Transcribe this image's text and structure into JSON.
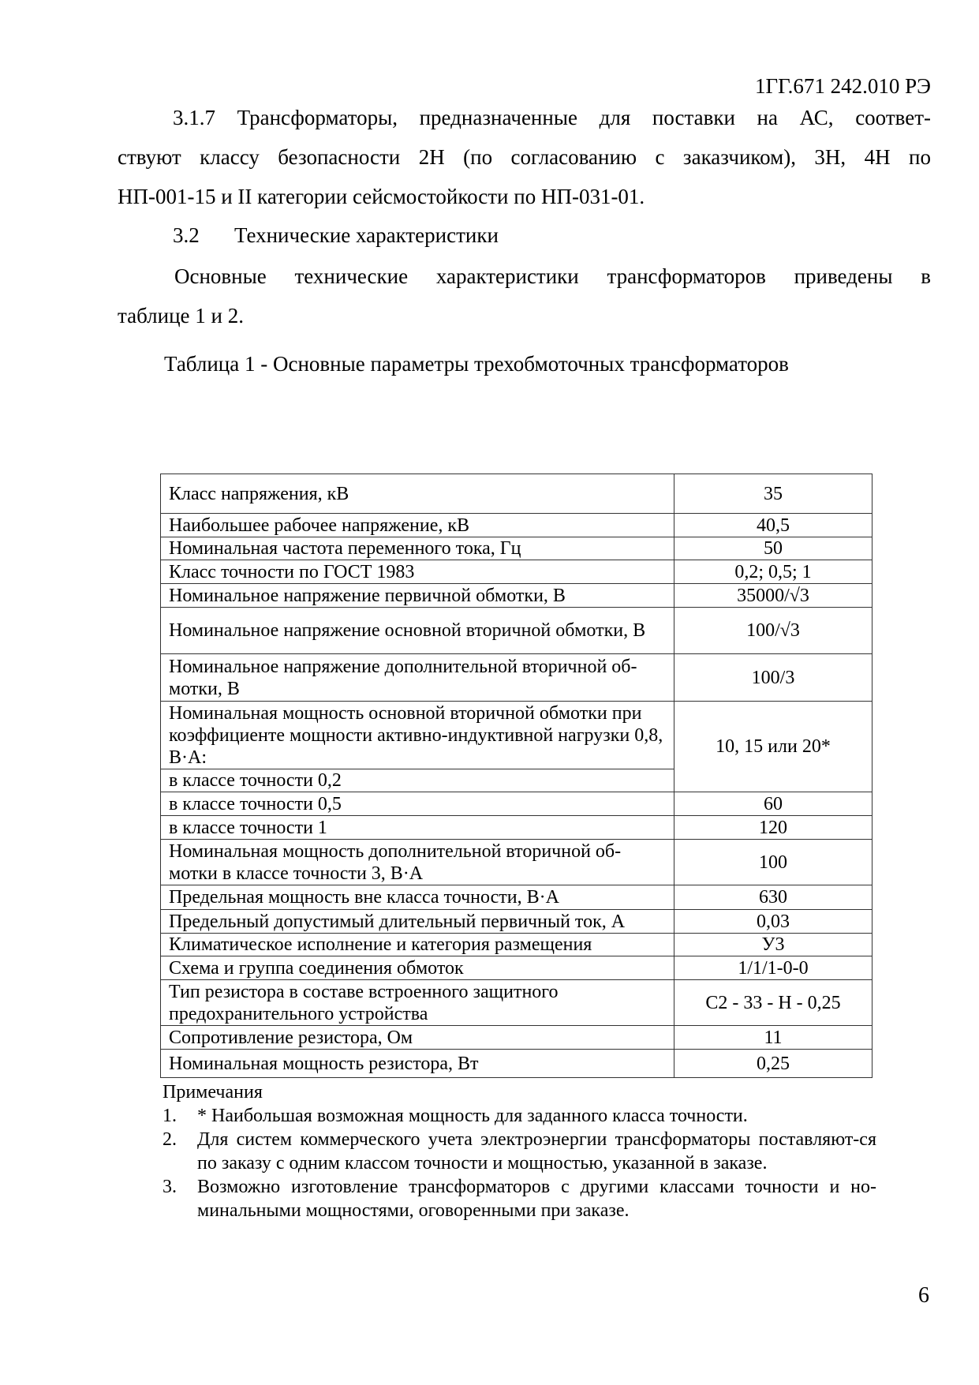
{
  "header": {
    "doc_code": "1ГГ.671 242.010 РЭ"
  },
  "paragraph_317": {
    "lines": [
      "3.1.7 Трансформаторы, предназначенные для поставки на АС, соответ-",
      "ствуют классу безопасности 2Н (по согласованию с заказчиком), 3Н, 4Н по",
      "НП-001-15 и II категории сейсмостойкости по НП-031-01."
    ]
  },
  "section": {
    "number": "3.2",
    "title": "Технические характеристики"
  },
  "intro": {
    "lines": [
      "Основные технические характеристики трансформаторов приведены в",
      "таблице 1 и 2."
    ]
  },
  "table_caption": "Таблица 1 - Основные параметры трехобмоточных трансформаторов",
  "table": {
    "rows": [
      {
        "param": "Класс напряжения, кВ",
        "value": "35"
      },
      {
        "param": "Наибольшее рабочее напряжение, кВ",
        "value": "40,5"
      },
      {
        "param": "Номинальная частота переменного тока, Гц",
        "value": "50"
      },
      {
        "param": "Класс точности по ГОСТ 1983",
        "value": "0,2; 0,5; 1"
      },
      {
        "param": "Номинальное напряжение первичной обмотки, В",
        "value": "35000/√3"
      },
      {
        "param": "Номинальное напряжение основной вторичной обмотки, В",
        "value": "100/√3"
      },
      {
        "param": "Номинальное напряжение дополнительной вторичной об-мотки, В",
        "value": "100/3"
      },
      {
        "param": "Номинальная мощность основной вторичной обмотки при коэффициенте мощности активно-индуктивной нагрузки 0,8, В·А:",
        "value": "10, 15 или 20*"
      },
      {
        "param": "в классе точности 0,2"
      },
      {
        "param": "в классе точности 0,5",
        "value": "60"
      },
      {
        "param": "в классе точности 1",
        "value": "120"
      },
      {
        "param": "Номинальная мощность дополнительной вторичной об-мотки в классе точности 3, В·А",
        "value": "100"
      },
      {
        "param": "Предельная мощность вне класса точности, В·А",
        "value": "630"
      },
      {
        "param": "Предельный допустимый длительный первичный ток, А",
        "value": "0,03"
      },
      {
        "param": "Климатическое исполнение и категория размещения",
        "value": "У3"
      },
      {
        "param": "Схема и группа соединения обмоток",
        "value": "1/1/1-0-0"
      },
      {
        "param": "Тип резистора в составе встроенного защитного предохранительного устройства",
        "value": "С2 - 33 - Н - 0,25"
      },
      {
        "param": "Сопротивление резистора, Ом",
        "value": "11"
      },
      {
        "param": "Номинальная мощность резистора, Вт",
        "value": "0,25"
      }
    ]
  },
  "notes": {
    "title": "Примечания",
    "items": [
      {
        "num": "1.",
        "text": "* Наибольшая возможная мощность для заданного класса точности."
      },
      {
        "num": "2.",
        "text": "Для систем коммерческого учета электроэнергии трансформаторы поставляют-ся по заказу с одним классом точности и мощностью, указанной в заказе."
      },
      {
        "num": "3.",
        "text": "Возможно изготовление трансформаторов с другими классами точности и но-минальными мощностями, оговоренными при заказе."
      }
    ]
  },
  "page_number": "6"
}
